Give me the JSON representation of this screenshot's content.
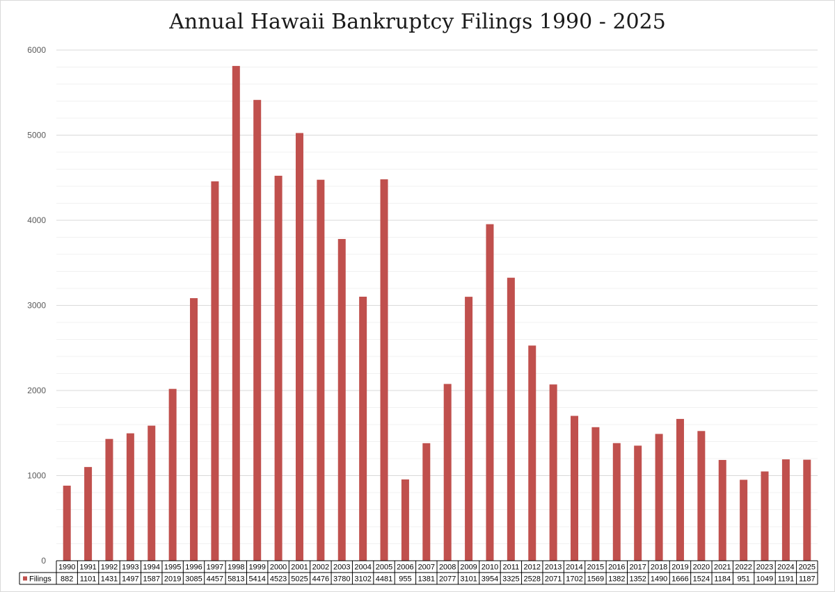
{
  "chart_data": {
    "type": "bar",
    "title": "Annual Hawaii Bankruptcy Filings 1990 - 2025",
    "xlabel": "",
    "ylabel": "",
    "ylim": [
      0,
      6000
    ],
    "yticks": [
      0,
      1000,
      2000,
      3000,
      4000,
      5000,
      6000
    ],
    "grid": true,
    "data_table": true,
    "categories": [
      "1990",
      "1991",
      "1992",
      "1993",
      "1994",
      "1995",
      "1996",
      "1997",
      "1998",
      "1999",
      "2000",
      "2001",
      "2002",
      "2003",
      "2004",
      "2005",
      "2006",
      "2007",
      "2008",
      "2009",
      "2010",
      "2011",
      "2012",
      "2013",
      "2014",
      "2015",
      "2016",
      "2017",
      "2018",
      "2019",
      "2020",
      "2021",
      "2022",
      "2023",
      "2024",
      "2025"
    ],
    "series": [
      {
        "name": "Filings",
        "color": "#c0504d",
        "values": [
          882,
          1101,
          1431,
          1497,
          1587,
          2019,
          3085,
          4457,
          5813,
          5414,
          4523,
          5025,
          4476,
          3780,
          3102,
          4481,
          955,
          1381,
          2077,
          3101,
          3954,
          3325,
          2528,
          2071,
          1702,
          1569,
          1382,
          1352,
          1490,
          1666,
          1524,
          1184,
          951,
          1049,
          1191,
          1187
        ]
      }
    ]
  }
}
